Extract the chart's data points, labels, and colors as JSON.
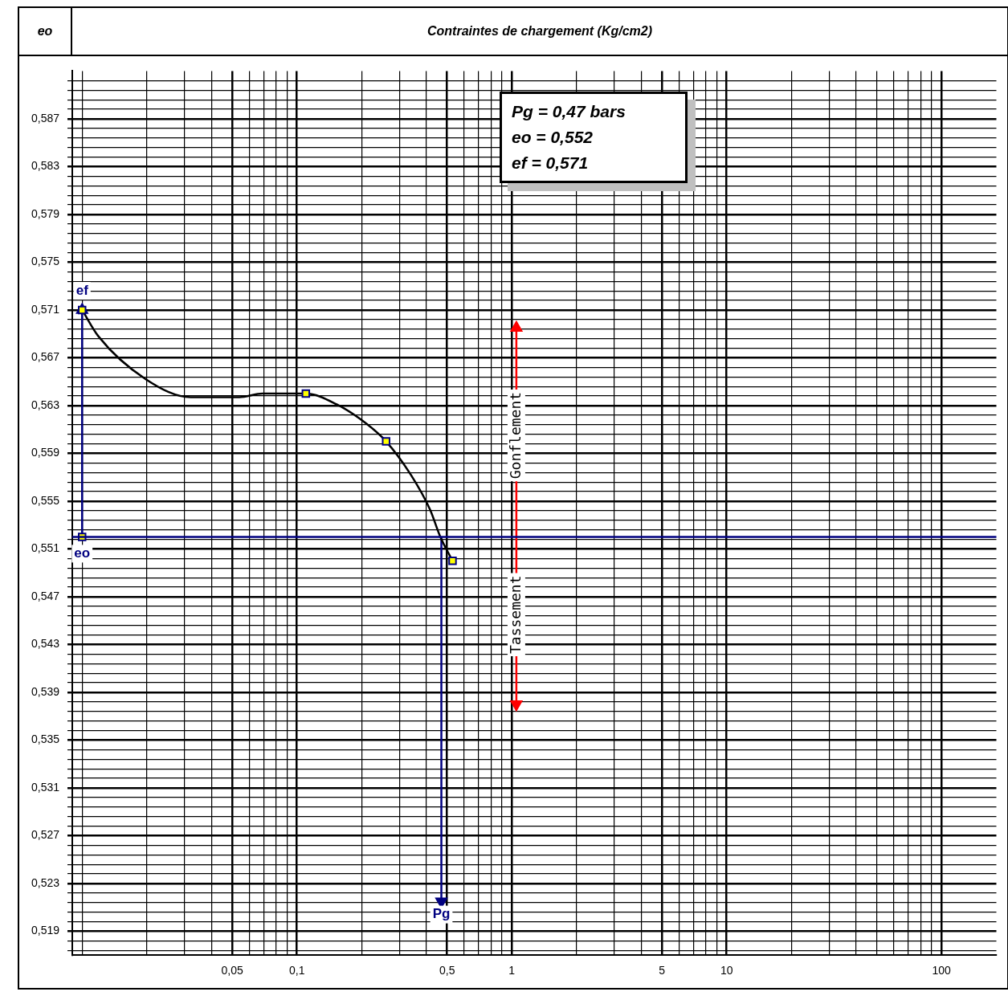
{
  "chart_data": {
    "type": "line",
    "xlabel": "Contraintes de chargement (Kg/cm2)",
    "ylabel": "eo",
    "log": "x",
    "grid": true,
    "legend": false,
    "xlim": [
      0.009,
      180
    ],
    "ylim": [
      0.517,
      0.591
    ],
    "xticks": [
      {
        "value": 0.01,
        "label": null
      },
      {
        "value": 0.02,
        "label": null
      },
      {
        "value": 0.03,
        "label": null
      },
      {
        "value": 0.04,
        "label": null
      },
      {
        "value": 0.05,
        "label": "0,05"
      },
      {
        "value": 0.06,
        "label": null
      },
      {
        "value": 0.07,
        "label": null
      },
      {
        "value": 0.08,
        "label": null
      },
      {
        "value": 0.09,
        "label": null
      },
      {
        "value": 0.1,
        "label": "0,1"
      },
      {
        "value": 0.2,
        "label": null
      },
      {
        "value": 0.3,
        "label": null
      },
      {
        "value": 0.4,
        "label": null
      },
      {
        "value": 0.5,
        "label": "0,5"
      },
      {
        "value": 0.6,
        "label": null
      },
      {
        "value": 0.7,
        "label": null
      },
      {
        "value": 0.8,
        "label": null
      },
      {
        "value": 0.9,
        "label": null
      },
      1,
      {
        "value": 2,
        "label": null
      },
      {
        "value": 3,
        "label": null
      },
      {
        "value": 4,
        "label": null
      },
      5,
      {
        "value": 6,
        "label": null
      },
      {
        "value": 7,
        "label": null
      },
      {
        "value": 8,
        "label": null
      },
      {
        "value": 9,
        "label": null
      },
      10,
      {
        "value": 20,
        "label": null
      },
      {
        "value": 30,
        "label": null
      },
      {
        "value": 40,
        "label": null
      },
      {
        "value": 50,
        "label": null
      },
      {
        "value": 60,
        "label": null
      },
      {
        "value": 70,
        "label": null
      },
      {
        "value": 80,
        "label": null
      },
      {
        "value": 90,
        "label": null
      },
      100
    ],
    "yticks": [
      {
        "value": 0.5174,
        "label": null
      },
      {
        "value": 0.5182,
        "label": null
      },
      {
        "value": 0.519,
        "label": "0,519"
      },
      {
        "value": 0.5198,
        "label": null
      },
      {
        "value": 0.5206,
        "label": null
      },
      {
        "value": 0.5214,
        "label": null
      },
      {
        "value": 0.5222,
        "label": null
      },
      {
        "value": 0.523,
        "label": "0,523"
      },
      {
        "value": 0.5238,
        "label": null
      },
      {
        "value": 0.5246,
        "label": null
      },
      {
        "value": 0.5254,
        "label": null
      },
      {
        "value": 0.5262,
        "label": null
      },
      {
        "value": 0.527,
        "label": "0,527"
      },
      {
        "value": 0.5278,
        "label": null
      },
      {
        "value": 0.5286,
        "label": null
      },
      {
        "value": 0.5294,
        "label": null
      },
      {
        "value": 0.5302,
        "label": null
      },
      {
        "value": 0.531,
        "label": "0,531"
      },
      {
        "value": 0.5318,
        "label": null
      },
      {
        "value": 0.5326,
        "label": null
      },
      {
        "value": 0.5334,
        "label": null
      },
      {
        "value": 0.5342,
        "label": null
      },
      {
        "value": 0.535,
        "label": "0,535"
      },
      {
        "value": 0.5358,
        "label": null
      },
      {
        "value": 0.5366,
        "label": null
      },
      {
        "value": 0.5374,
        "label": null
      },
      {
        "value": 0.5382,
        "label": null
      },
      {
        "value": 0.539,
        "label": "0,539"
      },
      {
        "value": 0.5398,
        "label": null
      },
      {
        "value": 0.5406,
        "label": null
      },
      {
        "value": 0.5414,
        "label": null
      },
      {
        "value": 0.5422,
        "label": null
      },
      {
        "value": 0.543,
        "label": "0,543"
      },
      {
        "value": 0.5438,
        "label": null
      },
      {
        "value": 0.5446,
        "label": null
      },
      {
        "value": 0.5454,
        "label": null
      },
      {
        "value": 0.5462,
        "label": null
      },
      {
        "value": 0.547,
        "label": "0,547"
      },
      {
        "value": 0.5478,
        "label": null
      },
      {
        "value": 0.5486,
        "label": null
      },
      {
        "value": 0.5494,
        "label": null
      },
      {
        "value": 0.5502,
        "label": null
      },
      {
        "value": 0.551,
        "label": "0,551"
      },
      {
        "value": 0.5518,
        "label": null
      },
      {
        "value": 0.5526,
        "label": null
      },
      {
        "value": 0.5534,
        "label": null
      },
      {
        "value": 0.5542,
        "label": null
      },
      {
        "value": 0.555,
        "label": "0,555"
      },
      {
        "value": 0.5558,
        "label": null
      },
      {
        "value": 0.5566,
        "label": null
      },
      {
        "value": 0.5574,
        "label": null
      },
      {
        "value": 0.5582,
        "label": null
      },
      {
        "value": 0.559,
        "label": "0,559"
      },
      {
        "value": 0.5598,
        "label": null
      },
      {
        "value": 0.5606,
        "label": null
      },
      {
        "value": 0.5614,
        "label": null
      },
      {
        "value": 0.5622,
        "label": null
      },
      {
        "value": 0.563,
        "label": "0,563"
      },
      {
        "value": 0.5638,
        "label": null
      },
      {
        "value": 0.5646,
        "label": null
      },
      {
        "value": 0.5654,
        "label": null
      },
      {
        "value": 0.5662,
        "label": null
      },
      {
        "value": 0.567,
        "label": "0,567"
      },
      {
        "value": 0.5678,
        "label": null
      },
      {
        "value": 0.5686,
        "label": null
      },
      {
        "value": 0.5694,
        "label": null
      },
      {
        "value": 0.5702,
        "label": null
      },
      {
        "value": 0.571,
        "label": "0,571"
      },
      {
        "value": 0.5718,
        "label": null
      },
      {
        "value": 0.5726,
        "label": null
      },
      {
        "value": 0.5734,
        "label": null
      },
      {
        "value": 0.5742,
        "label": null
      },
      {
        "value": 0.575,
        "label": "0,575"
      },
      {
        "value": 0.5758,
        "label": null
      },
      {
        "value": 0.5766,
        "label": null
      },
      {
        "value": 0.5774,
        "label": null
      },
      {
        "value": 0.5782,
        "label": null
      },
      {
        "value": 0.579,
        "label": "0,579"
      },
      {
        "value": 0.5798,
        "label": null
      },
      {
        "value": 0.5806,
        "label": null
      },
      {
        "value": 0.5814,
        "label": null
      },
      {
        "value": 0.5822,
        "label": null
      },
      {
        "value": 0.583,
        "label": "0,583"
      },
      {
        "value": 0.5838,
        "label": null
      },
      {
        "value": 0.5846,
        "label": null
      },
      {
        "value": 0.5854,
        "label": null
      },
      {
        "value": 0.5862,
        "label": null
      },
      {
        "value": 0.587,
        "label": "0,587"
      },
      {
        "value": 0.5878,
        "label": null
      },
      {
        "value": 0.5886,
        "label": null
      },
      {
        "value": 0.5894,
        "label": null
      },
      {
        "value": 0.5902,
        "label": null
      }
    ],
    "series": [
      {
        "type": "line",
        "color": "#000000",
        "marker": "none",
        "x": [
          0.01,
          0.0119,
          0.0198,
          0.032,
          0.054,
          0.069,
          0.11,
          0.153,
          0.21,
          0.26,
          0.339,
          0.416,
          0.465,
          0.53
        ],
        "values": [
          0.571,
          0.5688,
          0.5652,
          0.5637,
          0.5637,
          0.564,
          0.564,
          0.5631,
          0.5615,
          0.56,
          0.5572,
          0.5543,
          0.552,
          0.55
        ]
      },
      {
        "type": "scatter",
        "color": "#ffff00",
        "marker": "square",
        "x": [
          0.01,
          0.01,
          0.11,
          0.26,
          0.53
        ],
        "values": [
          0.571,
          0.552,
          0.564,
          0.56,
          0.55
        ]
      },
      {
        "type": "line",
        "color": "#000080",
        "marker": "triangle",
        "x": [
          0.01,
          0.01
        ],
        "values": [
          0.552,
          0.571
        ]
      },
      {
        "type": "line",
        "color": "#000080",
        "marker": "triangle",
        "x": [
          0.47,
          0.47
        ],
        "values": [
          0.552,
          0.5215
        ]
      },
      {
        "type": "line",
        "color": "#ff0000",
        "marker": "triangle",
        "x": [
          1.05,
          1.05
        ],
        "values": [
          0.552,
          0.5695
        ]
      },
      {
        "type": "line",
        "color": "#ff0000",
        "marker": "triangle",
        "x": [
          1.05,
          1.05
        ],
        "values": [
          0.552,
          0.538
        ]
      }
    ],
    "ref_lines": [
      {
        "axis": "y",
        "value": 0.552,
        "color": "#000080"
      }
    ],
    "annotations": [
      "Pg = 0,47 bars",
      "eo = 0,552",
      "ef = 0,571",
      {
        "text": "ef",
        "x": 0.01,
        "y": 0.5726
      },
      {
        "text": "eo",
        "x": 0.01,
        "y": 0.5506
      },
      {
        "text": "Pg",
        "x": 0.47,
        "y": 0.5204
      },
      {
        "text": "Gonflement",
        "x": 1.05,
        "y": 0.5605
      },
      {
        "text": "Tassement",
        "x": 1.05,
        "y": 0.5455
      }
    ]
  }
}
